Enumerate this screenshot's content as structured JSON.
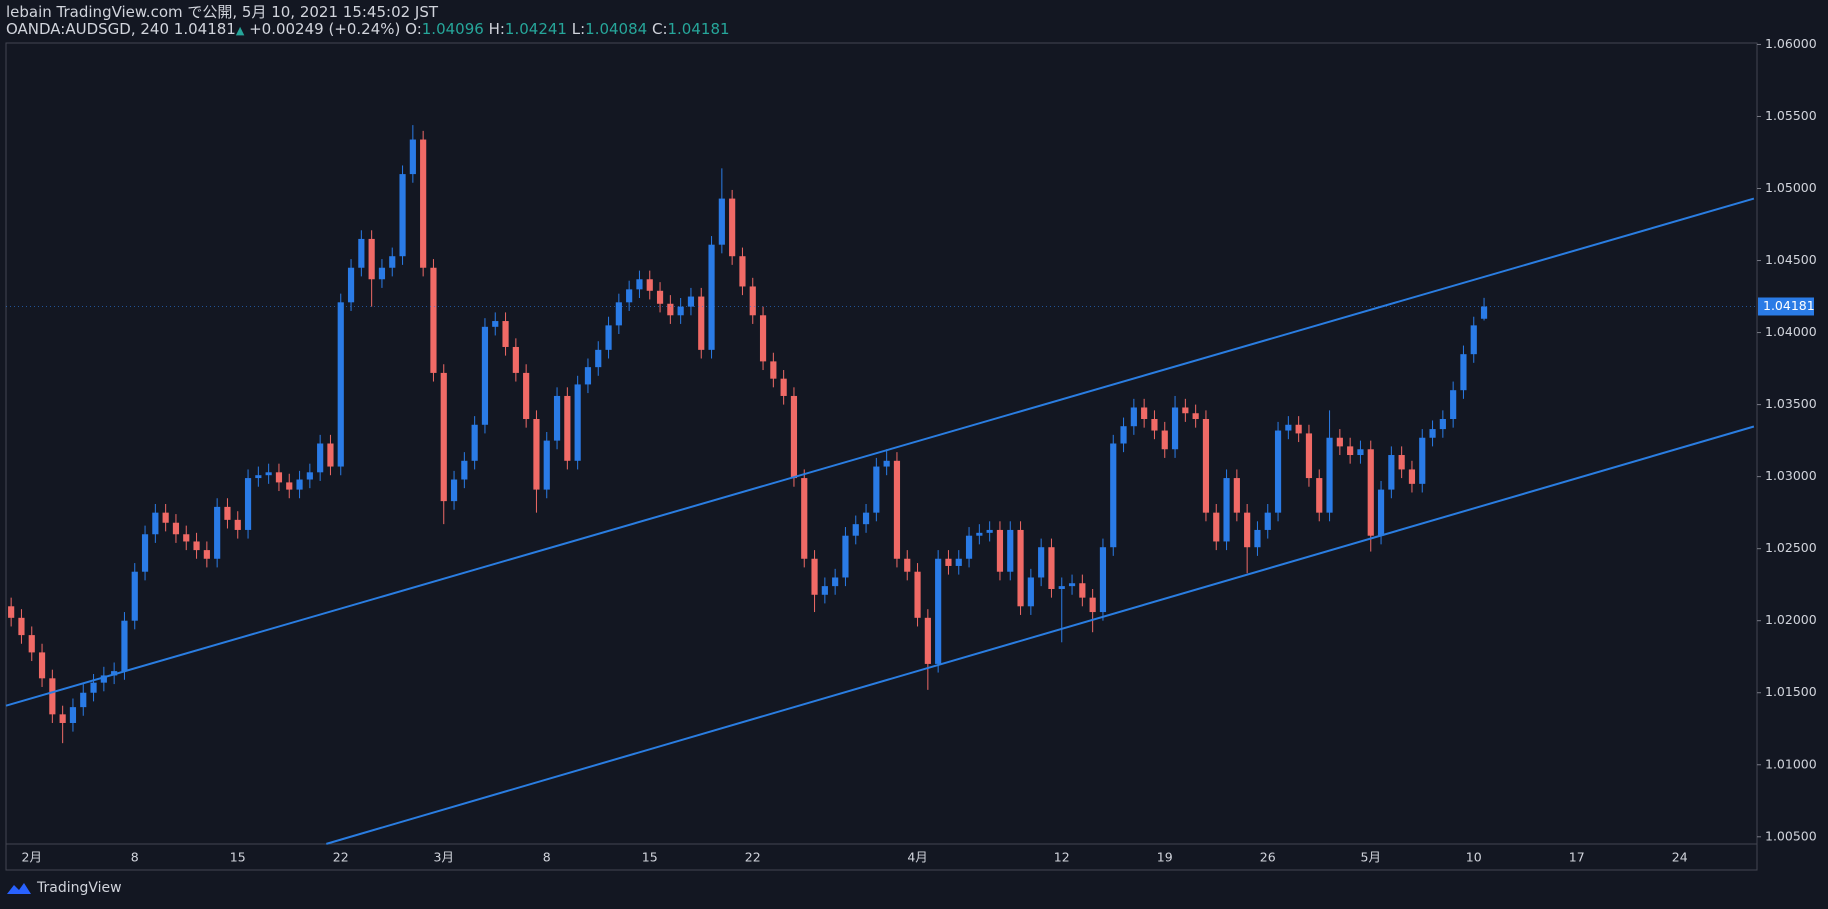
{
  "header": {
    "publisher": "lebain TradingView.com で公開, 5月 10, 2021 15:45:02 JST",
    "symbol": "OANDA:AUDSGD, 240",
    "last": "1.04181",
    "arrow": "▲",
    "change": "+0.00249 (+0.24%)",
    "ohlc": [
      {
        "label": "O:",
        "value": "1.04096"
      },
      {
        "label": "H:",
        "value": "1.04241"
      },
      {
        "label": "L:",
        "value": "1.04084"
      },
      {
        "label": "C:",
        "value": "1.04181"
      }
    ]
  },
  "footer": {
    "brand": "TradingView"
  },
  "chart_data": {
    "type": "candlestick",
    "up_color": "#2a7be6",
    "down_color": "#f06a66",
    "grid": false,
    "categories": [
      null,
      null,
      "2月",
      null,
      null,
      null,
      null,
      null,
      null,
      null,
      null,
      null,
      "8",
      null,
      null,
      null,
      null,
      null,
      null,
      null,
      null,
      null,
      "15",
      null,
      null,
      null,
      null,
      null,
      null,
      null,
      null,
      null,
      "22",
      null,
      null,
      null,
      null,
      null,
      null,
      null,
      null,
      null,
      "3月",
      null,
      null,
      null,
      null,
      null,
      null,
      null,
      null,
      null,
      "8",
      null,
      null,
      null,
      null,
      null,
      null,
      null,
      null,
      null,
      "15",
      null,
      null,
      null,
      null,
      null,
      null,
      null,
      null,
      null,
      "22",
      null,
      null,
      null,
      null,
      null,
      null,
      null,
      null,
      null,
      null,
      null,
      null,
      null,
      null,
      null,
      "4月",
      null,
      null,
      null,
      null,
      null,
      null,
      null,
      null,
      null,
      null,
      null,
      null,
      null,
      "12",
      null,
      null,
      null,
      null,
      null,
      null,
      null,
      null,
      null,
      "19",
      null,
      null,
      null,
      null,
      null,
      null,
      null,
      null,
      null,
      "26",
      null,
      null,
      null,
      null,
      null,
      null,
      null,
      null,
      null,
      "5月",
      null,
      null,
      null,
      null,
      null,
      null,
      null,
      null,
      null,
      "10",
      null,
      null,
      null,
      null,
      null,
      null,
      null,
      null,
      null,
      "17",
      null,
      null,
      null,
      null,
      null,
      null,
      null,
      null,
      null,
      "24",
      null,
      null,
      null,
      null,
      null,
      null,
      null
    ],
    "open": [
      1.021,
      1.0202,
      1.019,
      1.0178,
      1.016,
      1.0135,
      1.0129,
      1.014,
      1.015,
      1.0157,
      1.0162,
      1.0165,
      1.02,
      1.0234,
      1.026,
      1.0275,
      1.0268,
      1.026,
      1.0255,
      1.0249,
      1.0243,
      1.0279,
      1.027,
      1.0263,
      1.0299,
      1.0301,
      1.0303,
      1.0296,
      1.0291,
      1.0298,
      1.0303,
      1.0323,
      1.0307,
      1.0421,
      1.0445,
      1.0465,
      1.0437,
      1.0445,
      1.0453,
      1.051,
      1.0534,
      1.0445,
      1.0372,
      1.0283,
      1.0298,
      1.0311,
      1.0336,
      1.0404,
      1.0408,
      1.039,
      1.0372,
      1.034,
      1.0291,
      1.0325,
      1.0356,
      1.0311,
      1.0364,
      1.0376,
      1.0388,
      1.0405,
      1.0421,
      1.043,
      1.0437,
      1.0429,
      1.042,
      1.0412,
      1.0418,
      1.0425,
      1.0388,
      1.0461,
      1.0493,
      1.0453,
      1.0432,
      1.0412,
      1.038,
      1.0368,
      1.0356,
      1.0299,
      1.0243,
      1.0218,
      1.0224,
      1.023,
      1.0259,
      1.0267,
      1.0275,
      1.0307,
      1.0311,
      1.0243,
      1.0234,
      1.0202,
      1.017,
      1.0243,
      1.0238,
      1.0243,
      1.0259,
      1.0261,
      1.0263,
      1.0234,
      1.0263,
      1.021,
      1.023,
      1.0251,
      1.0222,
      1.0224,
      1.0226,
      1.0216,
      1.0206,
      1.0251,
      1.0323,
      1.0335,
      1.0348,
      1.034,
      1.0332,
      1.0319,
      1.0348,
      1.0344,
      1.034,
      1.0275,
      1.0255,
      1.0299,
      1.0275,
      1.0251,
      1.0263,
      1.0275,
      1.0332,
      1.0336,
      1.033,
      1.0299,
      1.0275,
      1.0327,
      1.0321,
      1.0315,
      1.0319,
      1.0259,
      1.0291,
      1.0315,
      1.0305,
      1.0295,
      1.0327,
      1.0333,
      1.034,
      1.036,
      1.0385,
      1.04096,
      null,
      null,
      null,
      null,
      null,
      null,
      null,
      null,
      null,
      null,
      null,
      null,
      null,
      null,
      null,
      null,
      null,
      null,
      null,
      null,
      null,
      null,
      null,
      null,
      null,
      null
    ],
    "high": [
      1.0216,
      1.0208,
      1.0196,
      1.0184,
      1.0166,
      1.0141,
      1.0146,
      1.0156,
      1.0163,
      1.0168,
      1.0171,
      1.0206,
      1.024,
      1.0266,
      1.0281,
      1.0281,
      1.0274,
      1.0266,
      1.0261,
      1.0255,
      1.0285,
      1.0285,
      1.0276,
      1.0305,
      1.0307,
      1.0309,
      1.0309,
      1.0302,
      1.0304,
      1.0309,
      1.0329,
      1.0329,
      1.0427,
      1.0451,
      1.0471,
      1.0471,
      1.0451,
      1.0459,
      1.0516,
      1.0544,
      1.054,
      1.0451,
      1.0378,
      1.0304,
      1.0317,
      1.0342,
      1.041,
      1.0414,
      1.0414,
      1.0396,
      1.0378,
      1.0346,
      1.0331,
      1.0362,
      1.0362,
      1.037,
      1.0382,
      1.0394,
      1.0411,
      1.0427,
      1.0436,
      1.0443,
      1.0443,
      1.0435,
      1.0426,
      1.0424,
      1.0431,
      1.0431,
      1.0467,
      1.0514,
      1.0499,
      1.0459,
      1.0438,
      1.0418,
      1.0386,
      1.0374,
      1.0362,
      1.0305,
      1.0249,
      1.023,
      1.0236,
      1.0265,
      1.0273,
      1.0281,
      1.0313,
      1.0319,
      1.0317,
      1.0249,
      1.024,
      1.0208,
      1.0249,
      1.0249,
      1.0249,
      1.0265,
      1.0267,
      1.0269,
      1.0269,
      1.0269,
      1.0269,
      1.0236,
      1.0257,
      1.0257,
      1.023,
      1.0232,
      1.0232,
      1.0222,
      1.0257,
      1.0329,
      1.0341,
      1.0354,
      1.0354,
      1.0346,
      1.0338,
      1.0356,
      1.0354,
      1.035,
      1.0346,
      1.0281,
      1.0305,
      1.0305,
      1.0281,
      1.0269,
      1.0281,
      1.0338,
      1.0342,
      1.0342,
      1.0336,
      1.0305,
      1.0346,
      1.0333,
      1.0327,
      1.0325,
      1.0325,
      1.0297,
      1.0321,
      1.0321,
      1.0311,
      1.0333,
      1.0339,
      1.0346,
      1.0366,
      1.0391,
      1.0411,
      1.04241,
      null,
      null,
      null,
      null,
      null,
      null,
      null,
      null,
      null,
      null,
      null,
      null,
      null,
      null,
      null,
      null,
      null,
      null,
      null,
      null,
      null,
      null,
      null,
      null,
      null,
      null
    ],
    "low": [
      1.0196,
      1.0184,
      1.0172,
      1.0154,
      1.0129,
      1.0115,
      1.0123,
      1.0134,
      1.0144,
      1.0151,
      1.0156,
      1.0159,
      1.0194,
      1.0228,
      1.0254,
      1.0262,
      1.0254,
      1.0249,
      1.0243,
      1.0237,
      1.0237,
      1.0264,
      1.0257,
      1.0257,
      1.0293,
      1.0295,
      1.029,
      1.0285,
      1.0285,
      1.0292,
      1.0297,
      1.0301,
      1.0301,
      1.0415,
      1.0439,
      1.0418,
      1.0431,
      1.0439,
      1.0447,
      1.0504,
      1.0439,
      1.0366,
      1.0267,
      1.0277,
      1.0292,
      1.0305,
      1.033,
      1.0398,
      1.0384,
      1.0366,
      1.0334,
      1.0275,
      1.0285,
      1.0319,
      1.0305,
      1.0305,
      1.0358,
      1.037,
      1.0382,
      1.0399,
      1.0415,
      1.0424,
      1.0423,
      1.0414,
      1.0406,
      1.0406,
      1.0412,
      1.0382,
      1.0382,
      1.0455,
      1.0447,
      1.0426,
      1.0406,
      1.0374,
      1.0362,
      1.035,
      1.0293,
      1.0237,
      1.0206,
      1.0212,
      1.0218,
      1.0224,
      1.0253,
      1.0261,
      1.0269,
      1.0301,
      1.0237,
      1.0228,
      1.0196,
      1.0152,
      1.0164,
      1.0232,
      1.0232,
      1.0237,
      1.0253,
      1.0255,
      1.0228,
      1.0228,
      1.0204,
      1.0204,
      1.0224,
      1.0216,
      1.0185,
      1.0218,
      1.021,
      1.0192,
      1.02,
      1.0245,
      1.0317,
      1.0329,
      1.0334,
      1.0326,
      1.0313,
      1.0313,
      1.0338,
      1.0334,
      1.0269,
      1.0249,
      1.0249,
      1.0269,
      1.0233,
      1.0245,
      1.0257,
      1.0269,
      1.0326,
      1.0324,
      1.0293,
      1.0269,
      1.0269,
      1.0315,
      1.0309,
      1.0309,
      1.0248,
      1.0253,
      1.0285,
      1.0299,
      1.0289,
      1.0289,
      1.0321,
      1.0327,
      1.0334,
      1.0354,
      1.0379,
      1.04084,
      null,
      null,
      null,
      null,
      null,
      null,
      null,
      null,
      null,
      null,
      null,
      null,
      null,
      null,
      null,
      null,
      null,
      null,
      null,
      null,
      null,
      null,
      null,
      null,
      null,
      null
    ],
    "close": [
      1.0202,
      1.019,
      1.0178,
      1.016,
      1.0135,
      1.0129,
      1.014,
      1.015,
      1.0157,
      1.0162,
      1.0165,
      1.02,
      1.0234,
      1.026,
      1.0275,
      1.0268,
      1.026,
      1.0255,
      1.0249,
      1.0243,
      1.0279,
      1.027,
      1.0263,
      1.0299,
      1.0301,
      1.0303,
      1.0296,
      1.0291,
      1.0298,
      1.0303,
      1.0323,
      1.0307,
      1.0421,
      1.0445,
      1.0465,
      1.0437,
      1.0445,
      1.0453,
      1.051,
      1.0534,
      1.0445,
      1.0372,
      1.0283,
      1.0298,
      1.0311,
      1.0336,
      1.0404,
      1.0408,
      1.039,
      1.0372,
      1.034,
      1.0291,
      1.0325,
      1.0356,
      1.0311,
      1.0364,
      1.0376,
      1.0388,
      1.0405,
      1.0421,
      1.043,
      1.0437,
      1.0429,
      1.042,
      1.0412,
      1.0418,
      1.0425,
      1.0388,
      1.0461,
      1.0493,
      1.0453,
      1.0432,
      1.0412,
      1.038,
      1.0368,
      1.0356,
      1.0299,
      1.0243,
      1.0218,
      1.0224,
      1.023,
      1.0259,
      1.0267,
      1.0275,
      1.0307,
      1.0311,
      1.0243,
      1.0234,
      1.0202,
      1.017,
      1.0243,
      1.0238,
      1.0243,
      1.0259,
      1.0261,
      1.0263,
      1.0234,
      1.0263,
      1.021,
      1.023,
      1.0251,
      1.0222,
      1.0224,
      1.0226,
      1.0216,
      1.0206,
      1.0251,
      1.0323,
      1.0335,
      1.0348,
      1.034,
      1.0332,
      1.0319,
      1.0348,
      1.0344,
      1.034,
      1.0275,
      1.0255,
      1.0299,
      1.0275,
      1.0251,
      1.0263,
      1.0275,
      1.0332,
      1.0336,
      1.033,
      1.0299,
      1.0275,
      1.0327,
      1.0321,
      1.0315,
      1.0319,
      1.0259,
      1.0291,
      1.0315,
      1.0305,
      1.0295,
      1.0327,
      1.0333,
      1.034,
      1.036,
      1.0385,
      1.0405,
      1.04181,
      null,
      null,
      null,
      null,
      null,
      null,
      null,
      null,
      null,
      null,
      null,
      null,
      null,
      null,
      null,
      null,
      null,
      null,
      null,
      null,
      null,
      null,
      null,
      null,
      null,
      null
    ],
    "ylim": [
      1.0045,
      1.0601
    ],
    "yticks": [
      {
        "value": 1.005,
        "label": "1.00500"
      },
      {
        "value": 1.01,
        "label": "1.01000"
      },
      {
        "value": 1.015,
        "label": "1.01500"
      },
      {
        "value": 1.02,
        "label": "1.02000"
      },
      {
        "value": 1.025,
        "label": "1.02500"
      },
      {
        "value": 1.03,
        "label": "1.03000"
      },
      {
        "value": 1.035,
        "label": "1.03500"
      },
      {
        "value": 1.04,
        "label": "1.04000"
      },
      {
        "value": 1.045,
        "label": "1.04500"
      },
      {
        "value": 1.05,
        "label": "1.05000"
      },
      {
        "value": 1.055,
        "label": "1.05500"
      },
      {
        "value": 1.06,
        "label": "1.06000"
      }
    ],
    "trendlines": [
      {
        "color": "#2a7de1",
        "start": [
          -0.5,
          1.0141
        ],
        "end": [
          169.2,
          1.0493
        ]
      },
      {
        "color": "#2a7de1",
        "start": [
          30.6,
          1.00451
        ],
        "end": [
          169.2,
          1.03348
        ]
      }
    ]
  }
}
